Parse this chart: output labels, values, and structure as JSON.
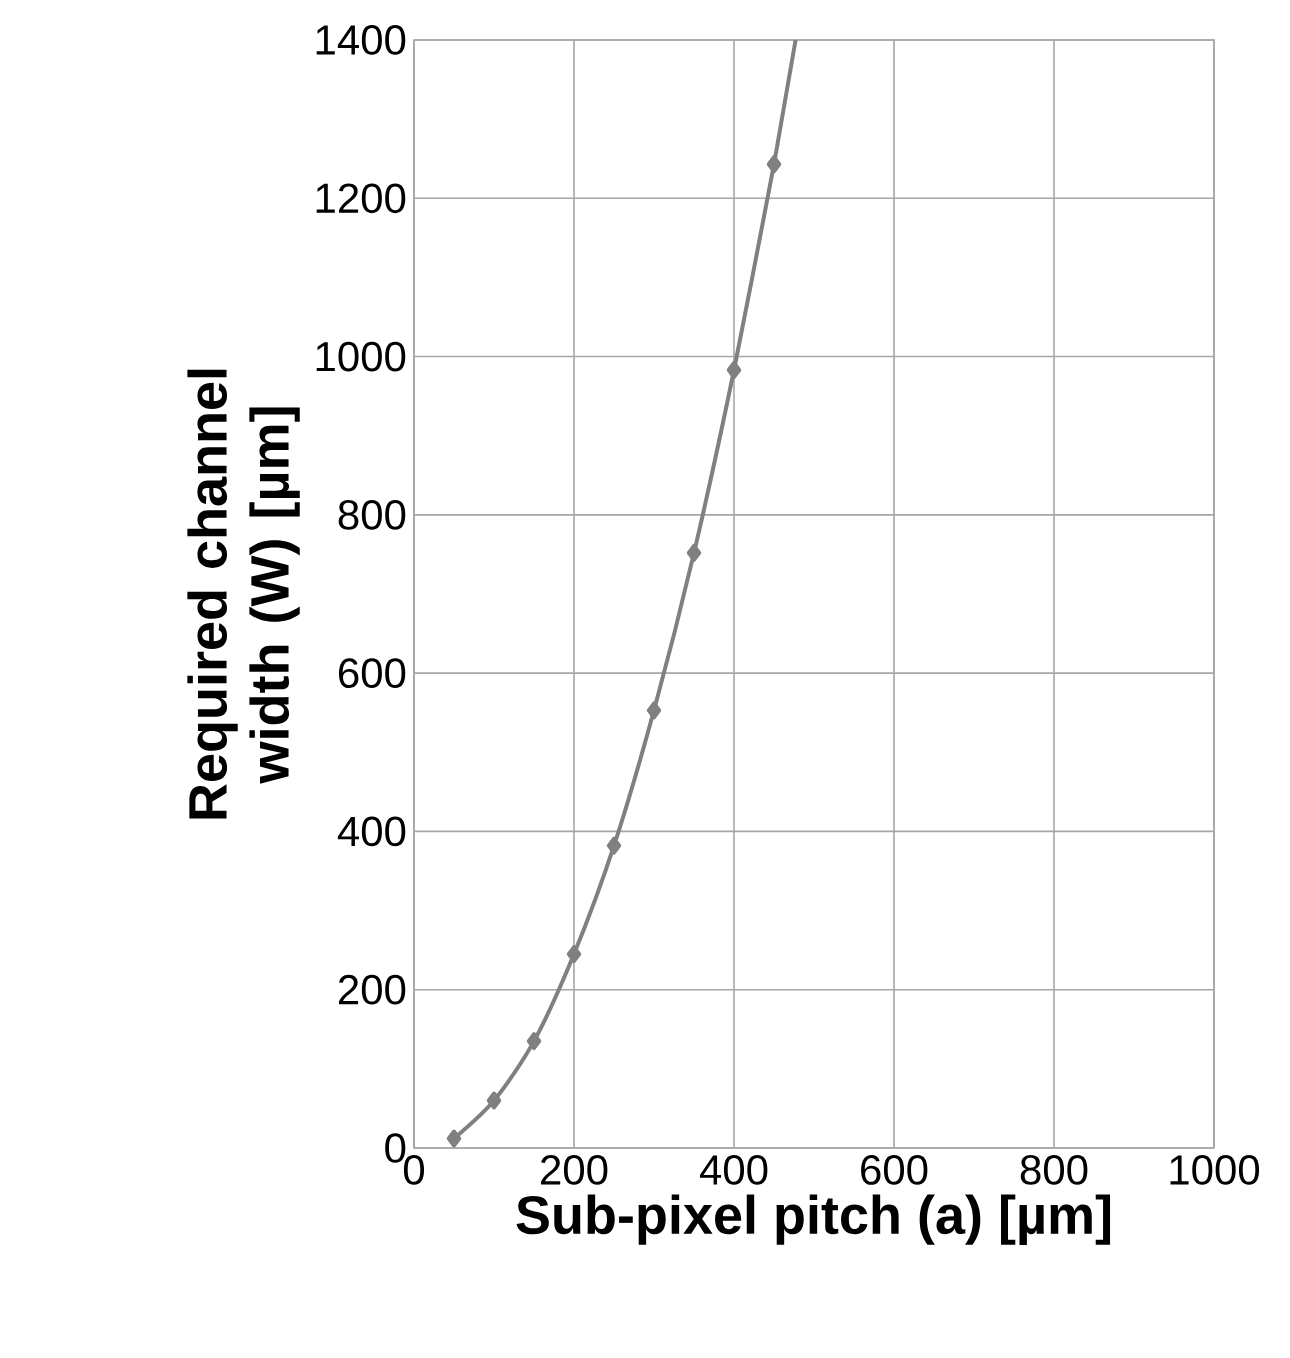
{
  "chart_data": {
    "type": "line",
    "xlabel": "Sub-pixel pitch (a) [µm]",
    "ylabel": "Required channel width (W) [µm]",
    "xlim": [
      0,
      1000
    ],
    "ylim": [
      0,
      1400
    ],
    "xticks": [
      0,
      200,
      400,
      600,
      800,
      1000
    ],
    "yticks": [
      0,
      200,
      400,
      600,
      800,
      1000,
      1200,
      1400
    ],
    "grid": true,
    "line_style": "solid",
    "series": [
      {
        "color": "#808080",
        "marker": "diamond",
        "x": [
          50,
          100,
          150,
          200,
          250,
          300,
          350,
          400,
          450
        ],
        "values": [
          12,
          60,
          135,
          245,
          382,
          553,
          752,
          983,
          1243
        ]
      },
      {
        "color": "#808080",
        "marker": "none",
        "x": [
          450,
          477
        ],
        "values": [
          1243,
          1400
        ]
      }
    ]
  }
}
